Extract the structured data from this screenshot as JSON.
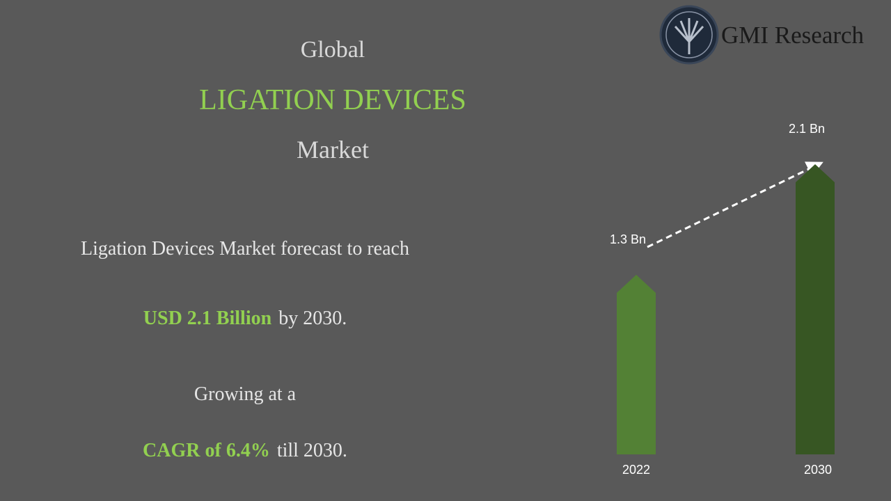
{
  "header": {
    "line1": "Global",
    "line2": "LIGATION DEVICES",
    "line3": "Market"
  },
  "logo": {
    "text": "GMI Research"
  },
  "summary": {
    "text1": "Ligation Devices Market forecast to reach",
    "highlight1": "USD 2.1 Billion",
    "rest1": "by 2030.",
    "text2": "Growing at a",
    "highlight2": "CAGR of 6.4%",
    "rest2": "till 2030."
  },
  "chart_data": {
    "type": "bar",
    "categories": [
      "2022",
      "2030"
    ],
    "values": [
      1.3,
      2.1
    ],
    "value_labels": [
      "1.3 Bn",
      "2.1 Bn"
    ],
    "colors": [
      "#538135",
      "#375623"
    ]
  }
}
